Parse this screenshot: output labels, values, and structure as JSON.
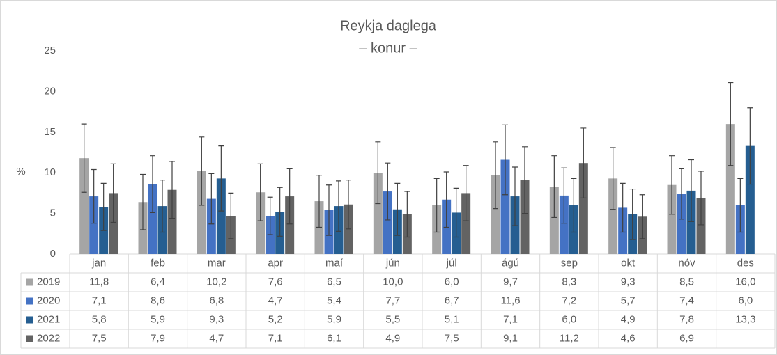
{
  "chart_data": {
    "type": "bar",
    "title": "Reykja daglega",
    "subtitle": "– konur –",
    "y_label": "%",
    "categories": [
      "jan",
      "feb",
      "mar",
      "apr",
      "maí",
      "jún",
      "júl",
      "ágú",
      "sep",
      "okt",
      "nóv",
      "des"
    ],
    "ylim": [
      0,
      25
    ],
    "yticks": [
      0,
      5,
      10,
      15,
      20,
      25
    ],
    "series": [
      {
        "name": "2019",
        "color": "#a5a5a5",
        "values": [
          11.8,
          6.4,
          10.2,
          7.6,
          6.5,
          10.0,
          6.0,
          9.7,
          8.3,
          9.3,
          8.5,
          16.0
        ],
        "value_labels": [
          "11,8",
          "6,4",
          "10,2",
          "7,6",
          "6,5",
          "10,0",
          "6,0",
          "9,7",
          "8,3",
          "9,3",
          "8,5",
          "16,0"
        ],
        "errors": [
          4.2,
          3.4,
          4.2,
          3.5,
          3.2,
          3.8,
          3.3,
          4.1,
          3.8,
          3.8,
          3.6,
          5.1
        ]
      },
      {
        "name": "2020",
        "color": "#4472c4",
        "values": [
          7.1,
          8.6,
          6.8,
          4.7,
          5.4,
          7.7,
          6.7,
          11.6,
          7.2,
          5.7,
          7.4,
          6.0
        ],
        "value_labels": [
          "7,1",
          "8,6",
          "6,8",
          "4,7",
          "5,4",
          "7,7",
          "6,7",
          "11,6",
          "7,2",
          "5,7",
          "7,4",
          "6,0"
        ],
        "errors": [
          3.3,
          3.5,
          3.1,
          2.3,
          3.1,
          3.5,
          3.4,
          4.3,
          3.4,
          3.0,
          3.1,
          3.3
        ]
      },
      {
        "name": "2021",
        "color": "#255e91",
        "values": [
          5.8,
          5.9,
          9.3,
          5.2,
          5.9,
          5.5,
          5.1,
          7.1,
          6.0,
          4.9,
          7.8,
          13.3
        ],
        "value_labels": [
          "5,8",
          "5,9",
          "9,3",
          "5,2",
          "5,9",
          "5,5",
          "5,1",
          "7,1",
          "6,0",
          "4,9",
          "7,8",
          "13,3"
        ],
        "errors": [
          2.9,
          3.2,
          4.0,
          3.0,
          3.1,
          3.2,
          3.0,
          3.6,
          3.3,
          3.1,
          3.8,
          4.7
        ]
      },
      {
        "name": "2022",
        "color": "#636363",
        "values": [
          7.5,
          7.9,
          4.7,
          7.1,
          6.1,
          4.9,
          7.5,
          9.1,
          11.2,
          4.6,
          6.9,
          null
        ],
        "value_labels": [
          "7,5",
          "7,9",
          "4,7",
          "7,1",
          "6,1",
          "4,9",
          "7,5",
          "9,1",
          "11,2",
          "4,6",
          "6,9",
          null
        ],
        "errors": [
          3.6,
          3.5,
          2.8,
          3.4,
          3.0,
          2.8,
          3.4,
          4.1,
          4.3,
          2.7,
          3.3,
          null
        ]
      }
    ]
  }
}
